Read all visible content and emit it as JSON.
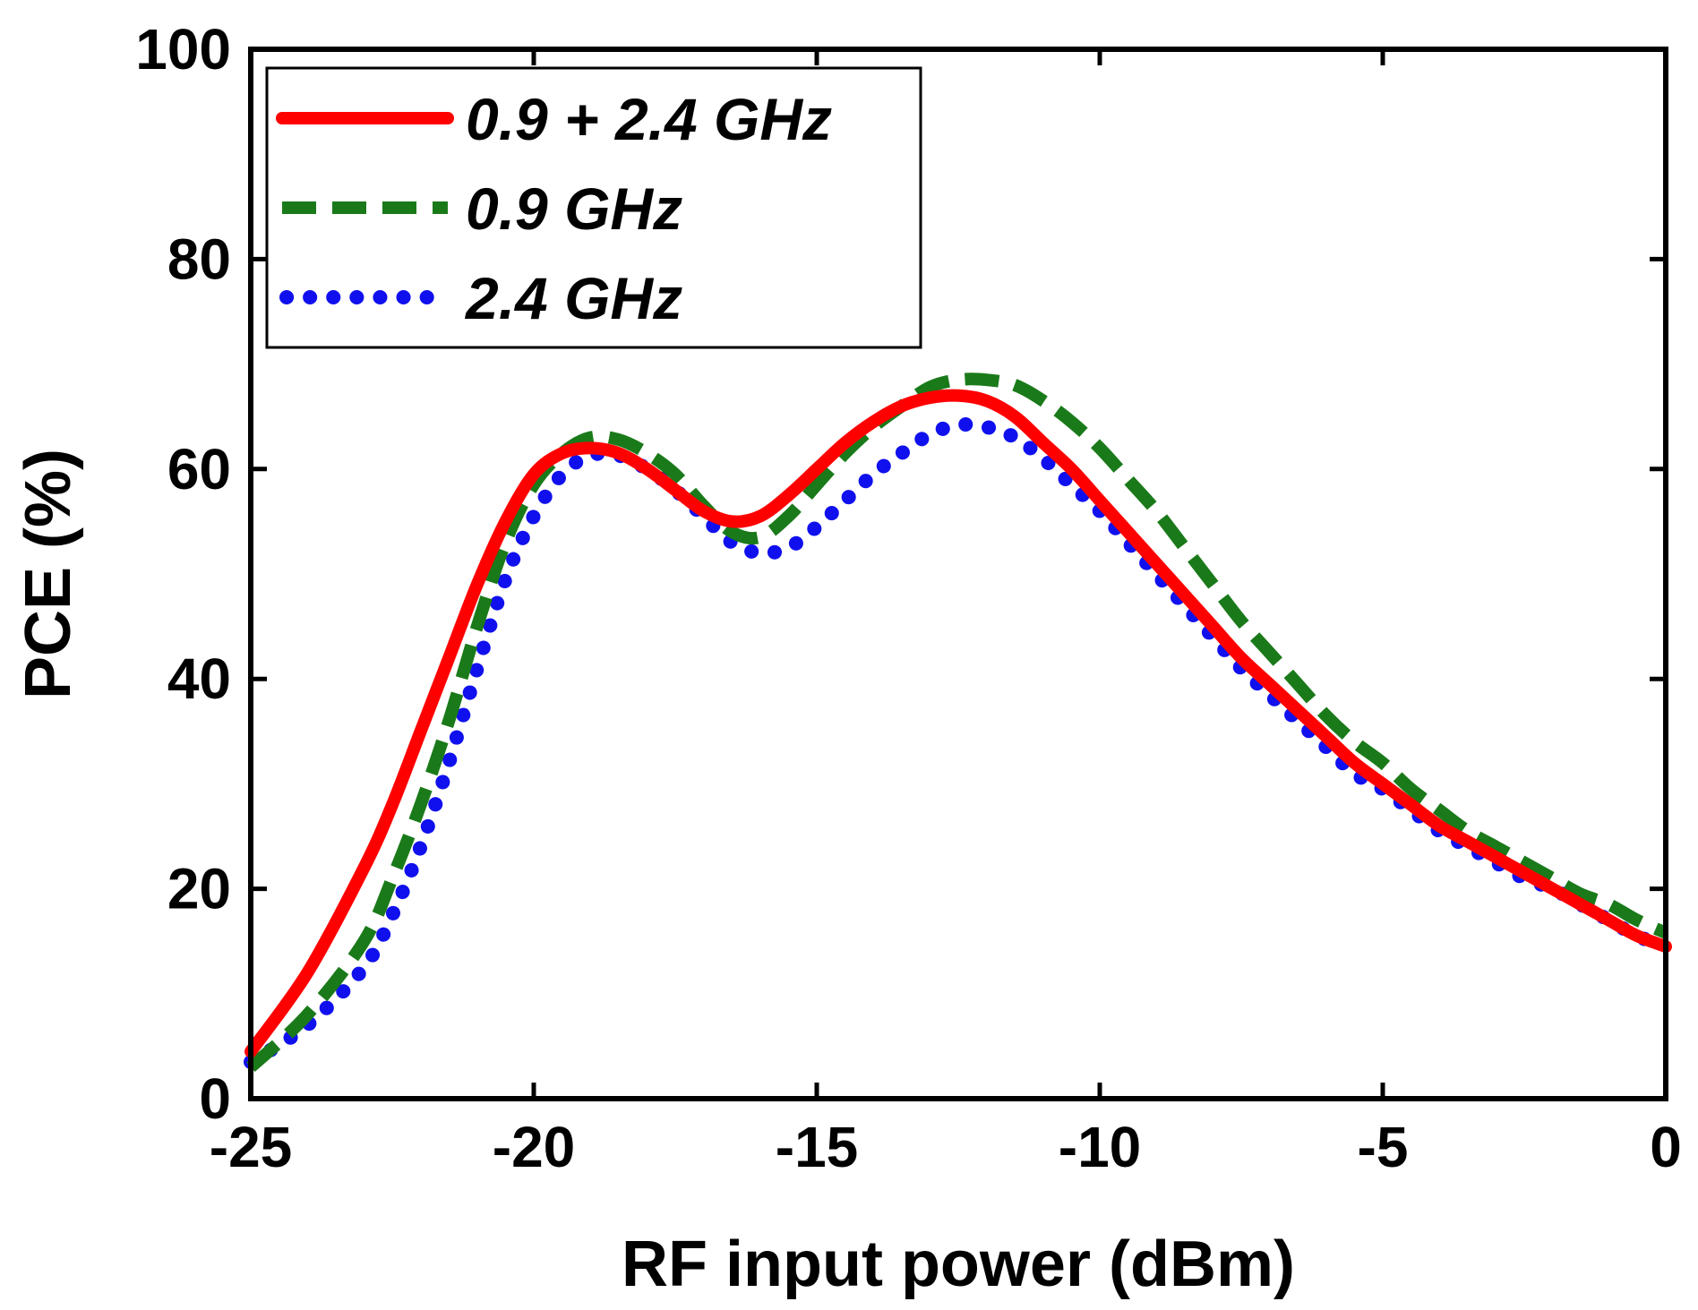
{
  "chart_data": {
    "type": "line",
    "title": "",
    "xlabel": "RF input power  (dBm)",
    "ylabel": "PCE  (%)",
    "xlim": [
      -25,
      0
    ],
    "ylim": [
      0,
      100
    ],
    "xticks": [
      -25,
      -20,
      -15,
      -10,
      -5,
      0
    ],
    "xtick_labels": [
      "-25",
      "-20",
      "-15",
      "-10",
      "-5",
      "0"
    ],
    "yticks": [
      0,
      20,
      40,
      60,
      80,
      100
    ],
    "ytick_labels": [
      "0",
      "20",
      "40",
      "60",
      "80",
      "100"
    ],
    "grid": false,
    "legend_position": "top-left",
    "series": [
      {
        "name": "0.9 + 2.4 GHz",
        "color": "#ff0000",
        "style": "solid",
        "x": [
          -25,
          -24,
          -23,
          -22.5,
          -22,
          -21.5,
          -21,
          -20.5,
          -20,
          -19.5,
          -19,
          -18.5,
          -18,
          -17.5,
          -17,
          -16.5,
          -16,
          -15.5,
          -15,
          -14.5,
          -14,
          -13.5,
          -13,
          -12.5,
          -12,
          -11.5,
          -11,
          -10.5,
          -10,
          -9.5,
          -9,
          -8.5,
          -8,
          -7.5,
          -7,
          -6.5,
          -6,
          -5.5,
          -5,
          -4.5,
          -4,
          -3.5,
          -3,
          -2.5,
          -2,
          -1.5,
          -1,
          -0.5,
          0
        ],
        "y": [
          4.5,
          12,
          22,
          28,
          35,
          42,
          49,
          55,
          59.5,
          61.5,
          62,
          61.5,
          60,
          58,
          56,
          55,
          55.5,
          57.5,
          60,
          62.5,
          64.5,
          66,
          66.8,
          67,
          66.5,
          65,
          62.5,
          60,
          57,
          54,
          51,
          48,
          45,
          42,
          39.5,
          37,
          34.5,
          32,
          30,
          28,
          26,
          24.5,
          23,
          21.5,
          20,
          18.5,
          17,
          15.5,
          14.5
        ]
      },
      {
        "name": "0.9 GHz",
        "color": "#1a7a1a",
        "style": "dashed",
        "x": [
          -25,
          -24,
          -23,
          -22.5,
          -22,
          -21.5,
          -21,
          -20.5,
          -20,
          -19.5,
          -19,
          -18.5,
          -18,
          -17.5,
          -17,
          -16.5,
          -16,
          -15.5,
          -15,
          -14.5,
          -14,
          -13.5,
          -13,
          -12.5,
          -12,
          -11.5,
          -11,
          -10.5,
          -10,
          -9.5,
          -9,
          -8.5,
          -8,
          -7.5,
          -7,
          -6.5,
          -6,
          -5.5,
          -5,
          -4.5,
          -4,
          -3.5,
          -3,
          -2.5,
          -2,
          -1.5,
          -1,
          -0.5,
          0
        ],
        "y": [
          3,
          8,
          15,
          21,
          28,
          36,
          45,
          53,
          58.5,
          61.5,
          63,
          62.8,
          61.5,
          59.5,
          56.5,
          54,
          53.5,
          55.5,
          58.5,
          61.5,
          64,
          66,
          67.8,
          68.5,
          68.5,
          68,
          66.5,
          64.5,
          62,
          59,
          56,
          52.5,
          49,
          45.5,
          42.5,
          39.5,
          36.5,
          34,
          32,
          29.5,
          27.5,
          25.5,
          24,
          22.5,
          21,
          19.5,
          18.5,
          17,
          15.8
        ]
      },
      {
        "name": "2.4 GHz",
        "color": "#1010ee",
        "style": "dotted",
        "x": [
          -25,
          -24,
          -23,
          -22.5,
          -22,
          -21.5,
          -21,
          -20.5,
          -20,
          -19.5,
          -19,
          -18.5,
          -18,
          -17.5,
          -17,
          -16.5,
          -16,
          -15.5,
          -15,
          -14.5,
          -14,
          -13.5,
          -13,
          -12.5,
          -12,
          -11.5,
          -11,
          -10.5,
          -10,
          -9.5,
          -9,
          -8.5,
          -8,
          -7.5,
          -7,
          -6.5,
          -6,
          -5.5,
          -5,
          -4.5,
          -4,
          -3.5,
          -3,
          -2.5,
          -2,
          -1.5,
          -1,
          -0.5,
          0
        ],
        "y": [
          3.5,
          7,
          12.5,
          17.5,
          24,
          32,
          41,
          49.5,
          55.5,
          59.5,
          61.3,
          61.3,
          60,
          58,
          55.5,
          53,
          52,
          52.5,
          54.5,
          57,
          59.5,
          61.5,
          63.3,
          64.2,
          64,
          63,
          61,
          58.5,
          56,
          53,
          50,
          47,
          44,
          41,
          38.5,
          36,
          33.5,
          31,
          29.5,
          27.5,
          25.5,
          24,
          22.5,
          21,
          20,
          18.5,
          17,
          15.5,
          14.5
        ]
      }
    ]
  }
}
